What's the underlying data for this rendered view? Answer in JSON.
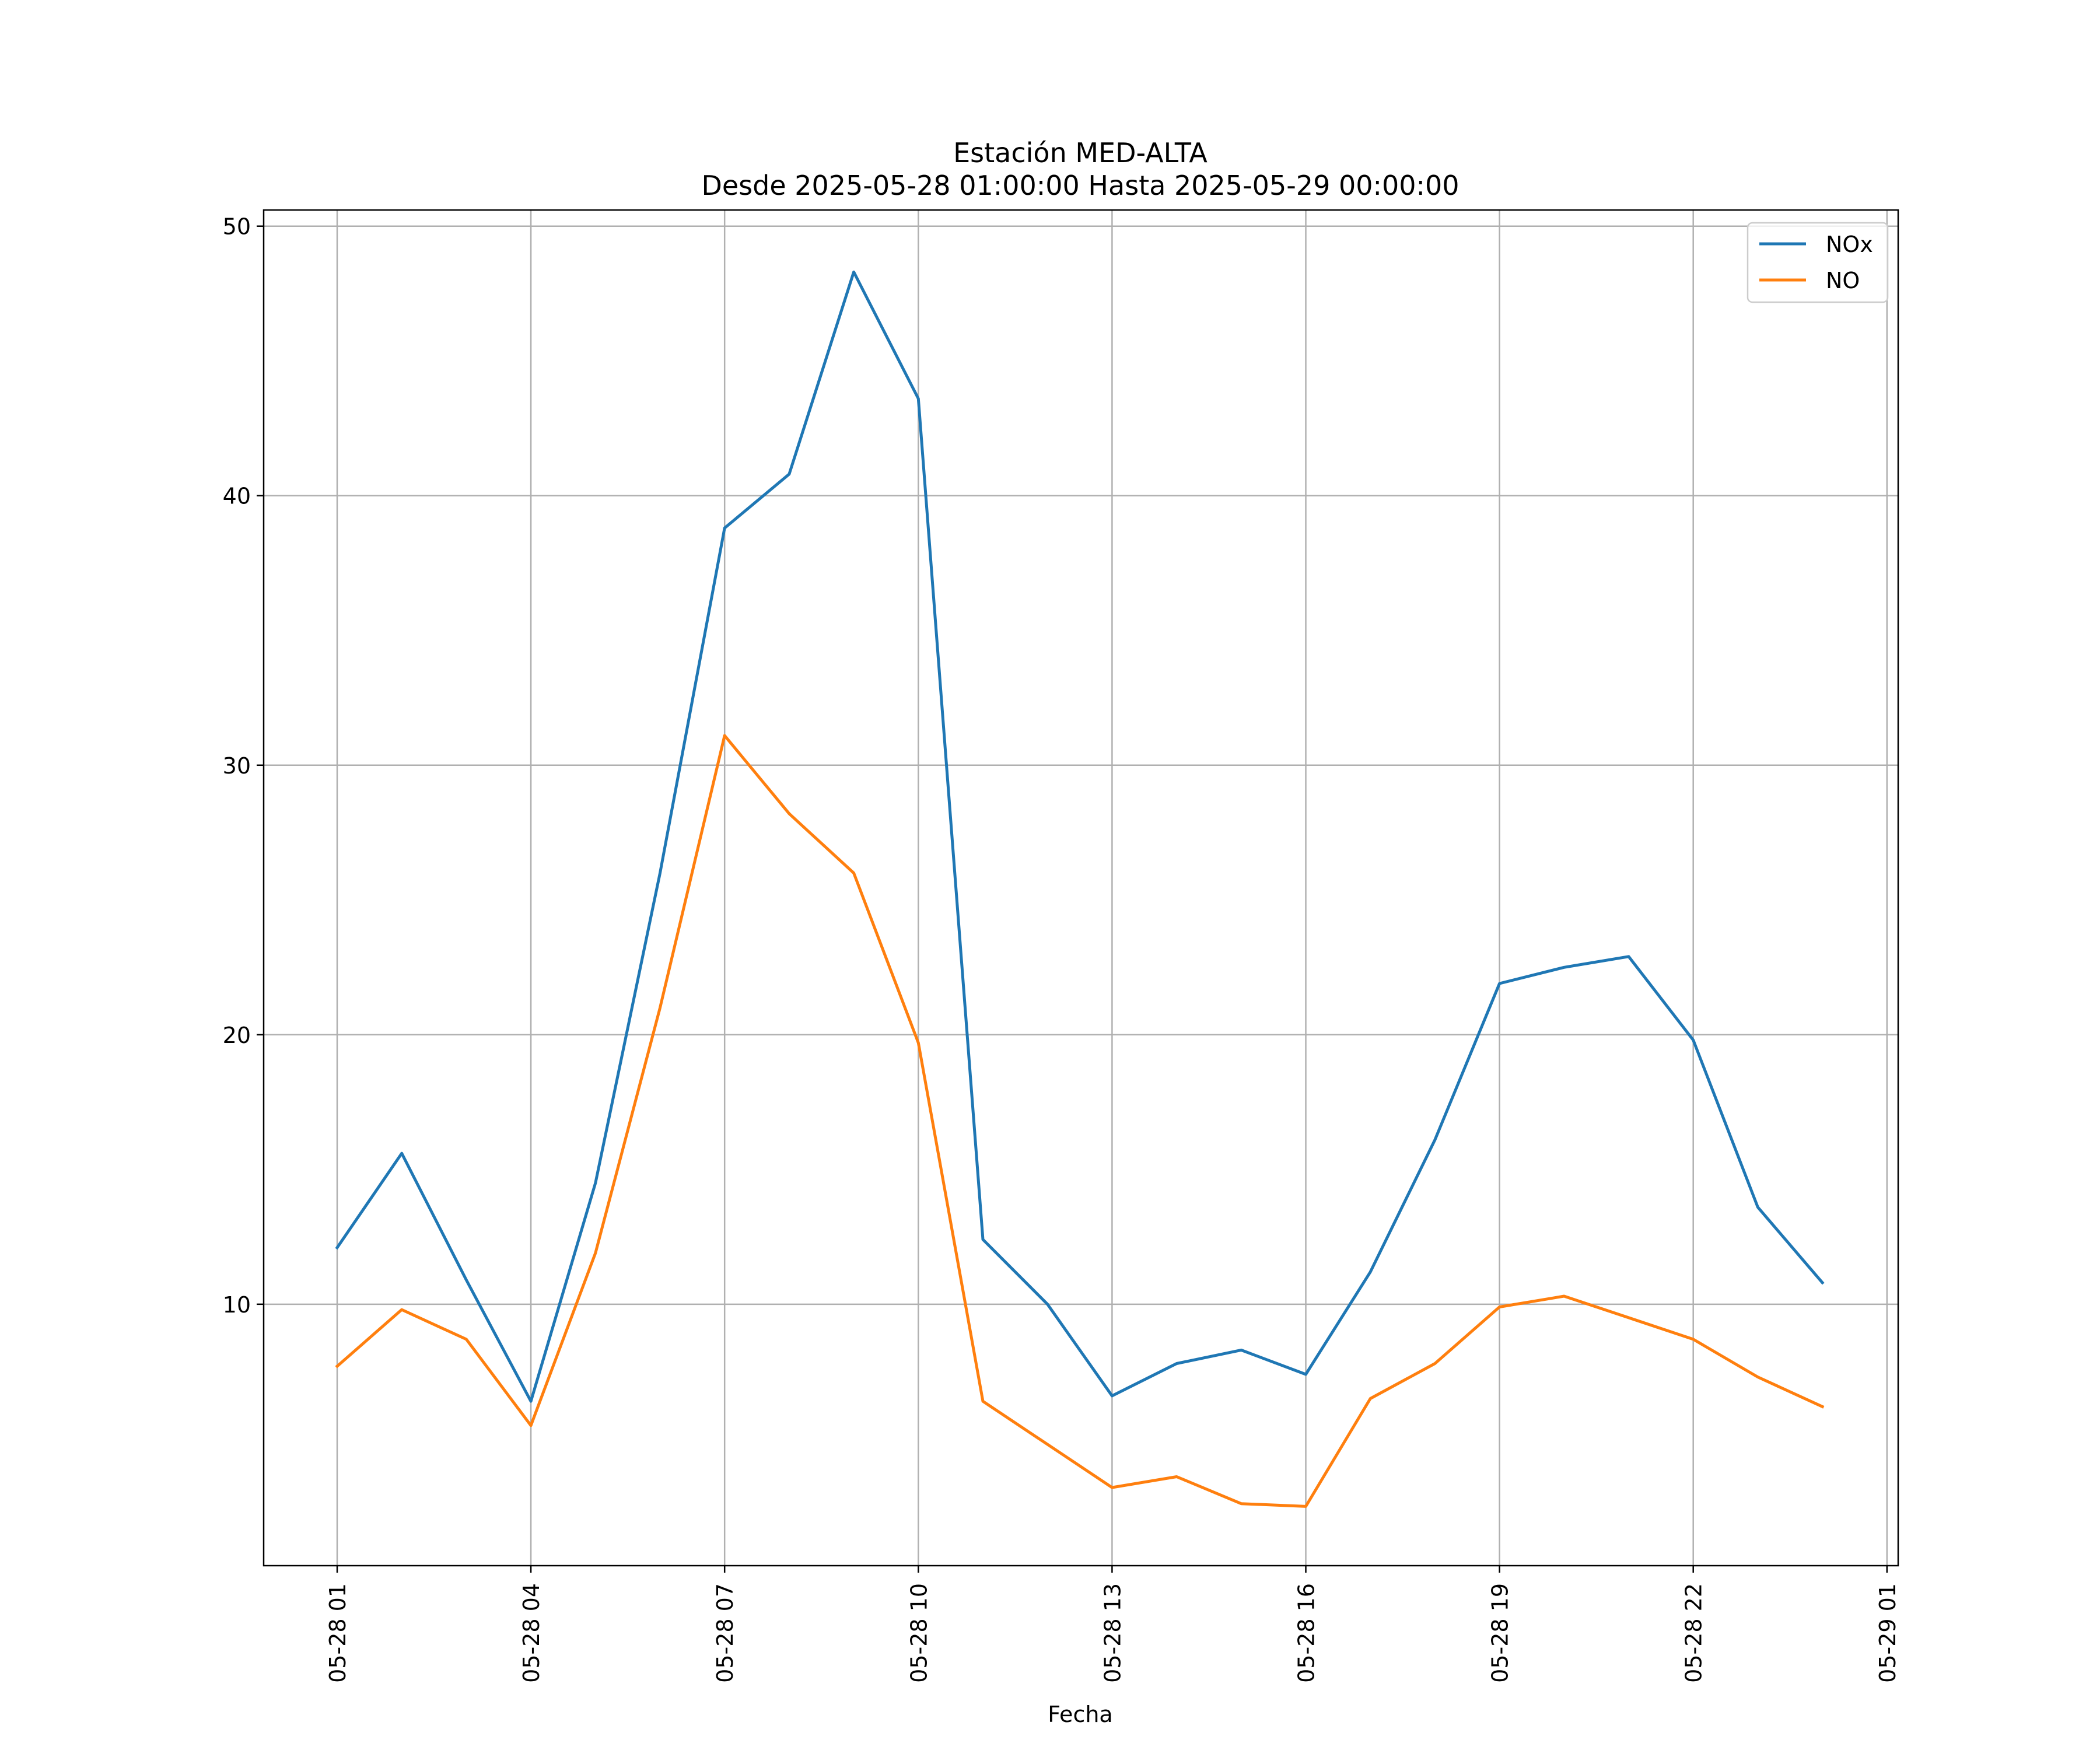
{
  "chart_data": {
    "type": "line",
    "title": "Estación MED-ALTA",
    "subtitle": "Desde 2025-05-28 01:00:00 Hasta 2025-05-29 00:00:00",
    "xlabel": "Fecha",
    "ylabel": "",
    "x": [
      "05-28 01",
      "05-28 02",
      "05-28 03",
      "05-28 04",
      "05-28 05",
      "05-28 06",
      "05-28 07",
      "05-28 08",
      "05-28 09",
      "05-28 10",
      "05-28 11",
      "05-28 12",
      "05-28 13",
      "05-28 14",
      "05-28 15",
      "05-28 16",
      "05-28 17",
      "05-28 18",
      "05-28 19",
      "05-28 20",
      "05-28 21",
      "05-28 22",
      "05-28 23",
      "05-29 00"
    ],
    "x_ticks": [
      "05-28 01",
      "05-28 04",
      "05-28 07",
      "05-28 10",
      "05-28 13",
      "05-28 16",
      "05-28 19",
      "05-28 22",
      "05-29 01"
    ],
    "y_ticks": [
      10,
      20,
      30,
      40,
      50
    ],
    "ylim": [
      0.3,
      50.6
    ],
    "grid": true,
    "legend_position": "top-right",
    "series": [
      {
        "name": "NOx",
        "color": "#1f77b4",
        "values": [
          12.1,
          15.6,
          10.9,
          6.4,
          14.5,
          26.0,
          38.8,
          40.8,
          48.3,
          43.6,
          12.4,
          10.0,
          6.6,
          7.8,
          8.3,
          7.4,
          11.2,
          16.1,
          21.9,
          22.5,
          22.9,
          19.8,
          13.6,
          10.8
        ]
      },
      {
        "name": "NO",
        "color": "#ff7f0e",
        "values": [
          7.7,
          9.8,
          8.7,
          5.5,
          11.9,
          21.0,
          31.1,
          28.2,
          26.0,
          19.7,
          6.4,
          4.8,
          3.2,
          3.6,
          2.6,
          2.5,
          6.5,
          7.8,
          9.9,
          10.3,
          9.5,
          8.7,
          7.3,
          6.2
        ]
      }
    ]
  }
}
